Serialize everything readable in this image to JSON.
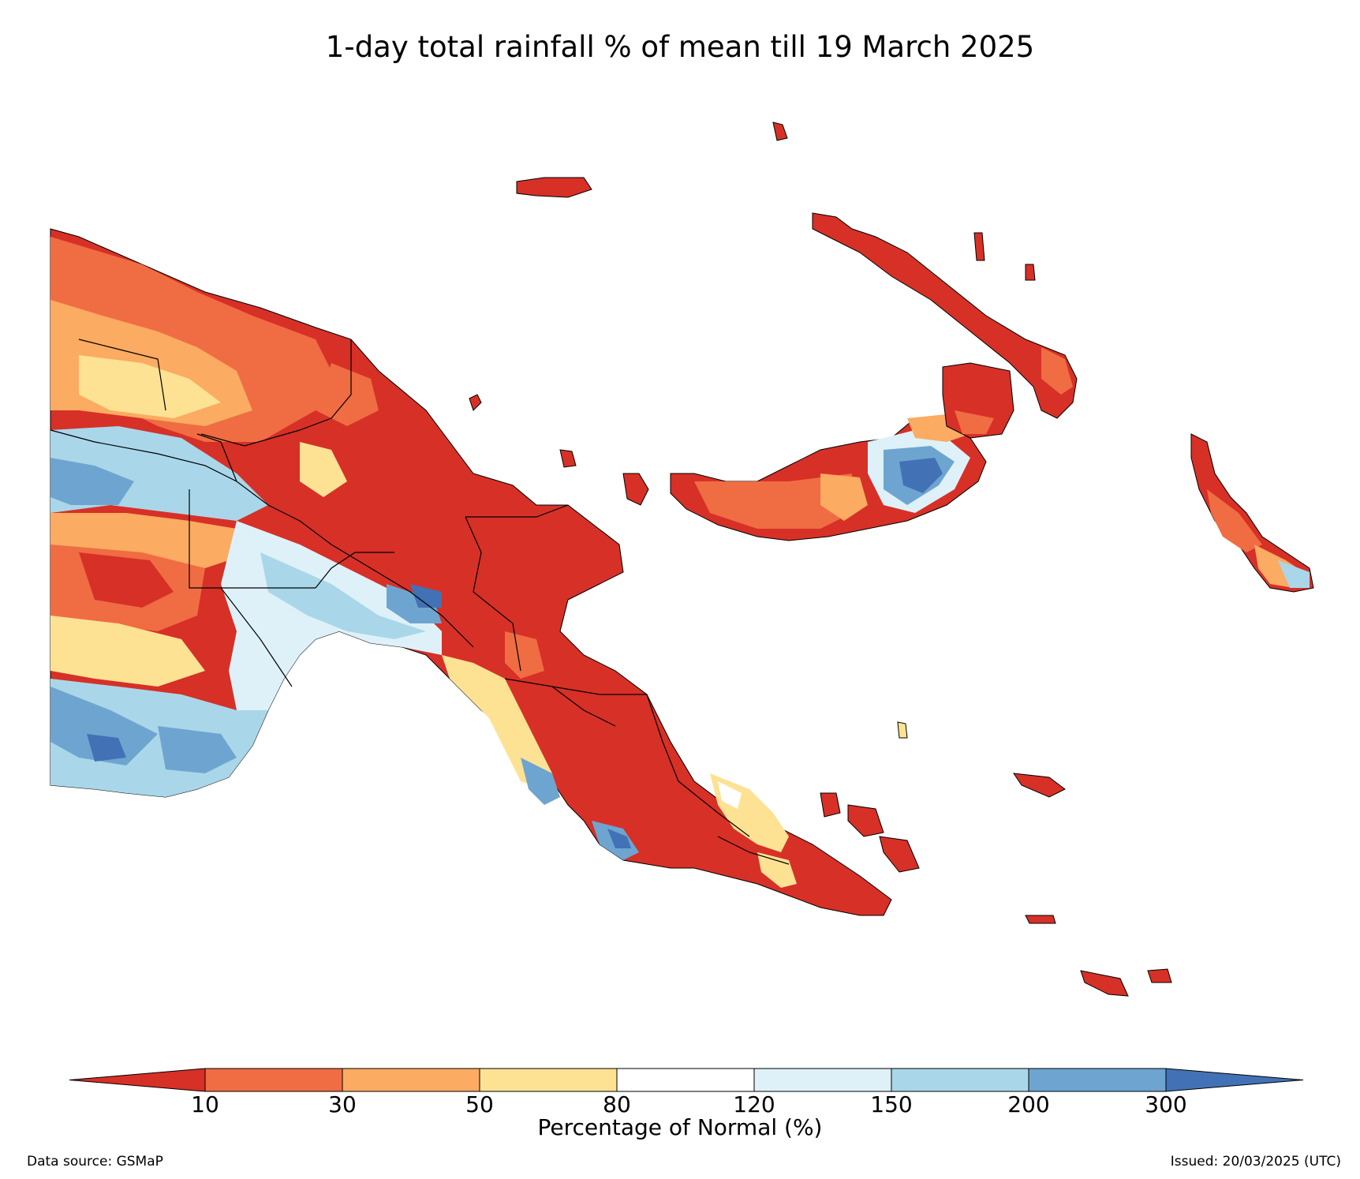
{
  "title": "1-day total rainfall % of mean till 19 March 2025",
  "legend": {
    "label": "Percentage of Normal (%)",
    "ticks": [
      "10",
      "30",
      "50",
      "80",
      "120",
      "150",
      "200",
      "300"
    ],
    "bins": [
      {
        "range": "<10",
        "color": "#d73027"
      },
      {
        "range": "10-30",
        "color": "#f06c43"
      },
      {
        "range": "30-50",
        "color": "#fbab62"
      },
      {
        "range": "50-80",
        "color": "#fde293"
      },
      {
        "range": "80-120",
        "color": "#ffffff"
      },
      {
        "range": "120-150",
        "color": "#def1f8"
      },
      {
        "range": "150-200",
        "color": "#a9d7e9"
      },
      {
        "range": "200-300",
        "color": "#6ea5d0"
      },
      {
        "range": ">300",
        "color": "#4272b5"
      }
    ]
  },
  "footer": {
    "source": "Data source: GSMaP",
    "issued": "Issued: 20/03/2025 (UTC)"
  }
}
